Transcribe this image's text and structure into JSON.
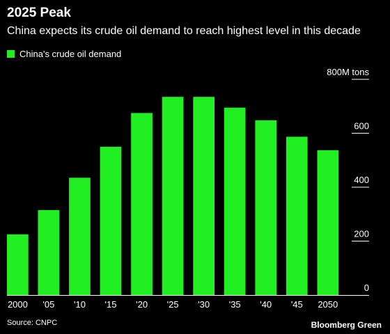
{
  "title": "2025 Peak",
  "subtitle": "China expects its crude oil demand to reach highest level in this decade",
  "source": "Source: CNPC",
  "brand": "Bloomberg Green",
  "colors": {
    "bar": "#21ef21",
    "background": "#000000",
    "text": "#ffffff"
  },
  "chart_data": {
    "type": "bar",
    "title": "2025 Peak",
    "subtitle": "China expects its crude oil demand to reach highest level in this decade",
    "categories": [
      "2000",
      "'05",
      "'10",
      "'15",
      "'20",
      "'25",
      "'30",
      "'35",
      "'40",
      "'45",
      "2050"
    ],
    "series": [
      {
        "name": "China's crude oil demand",
        "values": [
          225,
          315,
          435,
          550,
          675,
          735,
          735,
          695,
          648,
          587,
          537
        ]
      }
    ],
    "ylim": [
      0,
      800
    ],
    "yticks": [
      0,
      200,
      400,
      600,
      800
    ],
    "ytick_labels": [
      "0",
      "200",
      "400",
      "600",
      "800M tons"
    ],
    "legend": "top-left",
    "grid": false
  }
}
